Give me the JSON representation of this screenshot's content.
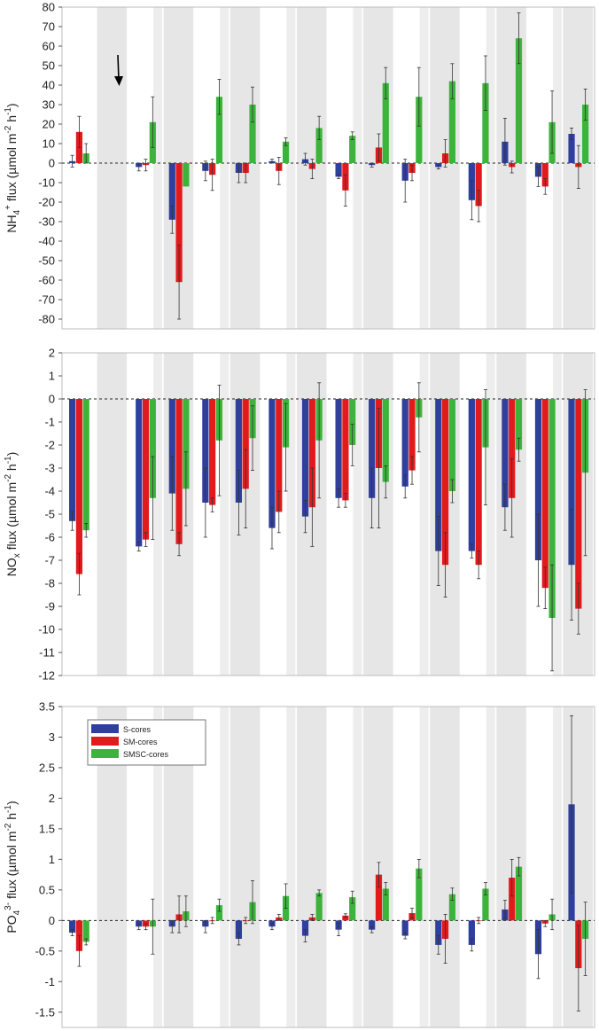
{
  "colors": {
    "S-cores": "#2e3f9e",
    "SM-cores": "#e31a1c",
    "SMSC-cores": "#3cb43c",
    "shade": "#e6e6e6",
    "frame": "#bdbdbd"
  },
  "legend": [
    "S-cores",
    "SM-cores",
    "SMSC-cores"
  ],
  "annotation": {
    "type": "arrow-down-icon"
  },
  "chart_data": [
    {
      "type": "bar",
      "ylabel": {
        "pre": "NH",
        "sub": "4",
        "sup": "+",
        "main": " flux (µmol m",
        "sup2": "-2",
        "mid": " h",
        "sup3": "-1",
        "post": ")"
      },
      "ylim": [
        -85,
        80
      ],
      "yticks": [
        80,
        70,
        60,
        50,
        40,
        30,
        20,
        10,
        0,
        -10,
        -20,
        -30,
        -40,
        -50,
        -60,
        -70,
        -80
      ],
      "groups": 8,
      "series": [
        {
          "name": "S-cores",
          "values": [
            [
              1,
              3
            ],
            [
              -2,
              2
            ],
            [
              -4,
              5
            ],
            [
              1,
              1
            ],
            [
              -7,
              1
            ],
            [
              -9,
              11
            ],
            [
              -19,
              10
            ],
            [
              -7,
              5
            ]
          ]
        },
        {
          "name": "SM-cores",
          "values": [
            [
              16,
              8
            ],
            [
              -1,
              3
            ],
            [
              -6,
              8
            ],
            [
              -4,
              7
            ],
            [
              -14,
              8
            ],
            [
              -5,
              4
            ],
            [
              -22,
              8
            ],
            [
              -12,
              4
            ]
          ]
        },
        {
          "name": "SMSC-cores",
          "values": [
            [
              5,
              5
            ],
            [
              21,
              13
            ],
            [
              34,
              9
            ],
            [
              11,
              2
            ],
            [
              14,
              2
            ],
            [
              34,
              15
            ],
            [
              41,
              14
            ],
            [
              21,
              16
            ]
          ]
        },
        {
          "name": "S-cores",
          "values": [
            null,
            [
              -29,
              7
            ],
            [
              -5,
              5
            ],
            [
              2,
              3
            ],
            [
              -1,
              1
            ],
            [
              -2,
              1
            ],
            [
              11,
              12
            ],
            [
              15,
              3
            ]
          ]
        },
        {
          "name": "SM-cores",
          "values": [
            null,
            [
              -61,
              19
            ],
            [
              -5,
              5
            ],
            [
              -3,
              5
            ],
            [
              8,
              7
            ],
            [
              5,
              7
            ],
            [
              -2,
              3
            ],
            [
              -2,
              11
            ]
          ]
        },
        {
          "name": "SMSC-cores",
          "values": [
            null,
            [
              -12,
              0
            ],
            [
              30,
              9
            ],
            [
              18,
              6
            ],
            [
              41,
              8
            ],
            [
              42,
              9
            ],
            [
              64,
              13
            ],
            [
              30,
              8
            ]
          ]
        }
      ]
    },
    {
      "type": "bar",
      "ylabel": {
        "pre": "NO",
        "sub": "x",
        "sup": "",
        "main": " flux (µmol m",
        "sup2": "-2",
        "mid": " h",
        "sup3": "-1",
        "post": ")"
      },
      "ylim": [
        -12,
        2
      ],
      "yticks": [
        2,
        1,
        0,
        -1,
        -2,
        -3,
        -4,
        -5,
        -6,
        -7,
        -8,
        -9,
        -10,
        -11,
        -12
      ],
      "groups": 8,
      "series": [
        {
          "name": "S-cores",
          "values": [
            [
              -5.3,
              0.4
            ],
            [
              -6.4,
              0.2
            ],
            [
              -4.5,
              1.5
            ],
            [
              -5.6,
              0.9
            ],
            [
              -4.3,
              0.4
            ],
            [
              -3.8,
              0.5
            ],
            [
              -6.6,
              0.3
            ],
            [
              -7.0,
              2.0
            ]
          ]
        },
        {
          "name": "SM-cores",
          "values": [
            [
              -7.6,
              0.9
            ],
            [
              -6.1,
              0.3
            ],
            [
              -4.6,
              0.3
            ],
            [
              -4.9,
              0.9
            ],
            [
              -4.4,
              0.3
            ],
            [
              -3.1,
              0.6
            ],
            [
              -7.2,
              0.6
            ],
            [
              -8.2,
              0.9
            ]
          ]
        },
        {
          "name": "SMSC-cores",
          "values": [
            [
              -5.7,
              0.3
            ],
            [
              -4.3,
              1.8
            ],
            [
              -1.8,
              2.4
            ],
            [
              -2.1,
              1.9
            ],
            [
              -2.0,
              0.9
            ],
            [
              -0.8,
              1.5
            ],
            [
              -2.1,
              2.5
            ],
            [
              -9.5,
              2.3
            ]
          ]
        },
        {
          "name": "S-cores",
          "values": [
            null,
            [
              -4.1,
              1.6
            ],
            [
              -4.5,
              1.4
            ],
            [
              -5.1,
              0.7
            ],
            [
              -4.3,
              1.3
            ],
            [
              -6.6,
              1.5
            ],
            [
              -4.7,
              1.0
            ],
            [
              -7.2,
              2.4
            ]
          ]
        },
        {
          "name": "SM-cores",
          "values": [
            null,
            [
              -6.3,
              0.5
            ],
            [
              -3.9,
              1.7
            ],
            [
              -4.7,
              1.7
            ],
            [
              -3.0,
              2.6
            ],
            [
              -7.2,
              1.4
            ],
            [
              -4.3,
              1.7
            ],
            [
              -9.1,
              1.1
            ]
          ]
        },
        {
          "name": "SMSC-cores",
          "values": [
            null,
            [
              -3.9,
              1.6
            ],
            [
              -1.7,
              1.4
            ],
            [
              -1.8,
              2.5
            ],
            [
              -3.6,
              0.7
            ],
            [
              -4.0,
              0.5
            ],
            [
              -2.2,
              0.5
            ],
            [
              -3.2,
              3.6
            ]
          ]
        }
      ]
    },
    {
      "type": "bar",
      "ylabel": {
        "pre": "PO",
        "sub": "4",
        "sup": "3-",
        "main": " flux (µmol m",
        "sup2": "-2",
        "mid": " h",
        "sup3": "-1",
        "post": ")"
      },
      "ylim": [
        -1.75,
        3.5
      ],
      "yticks": [
        3.5,
        3,
        2.5,
        2,
        1.5,
        1,
        0.5,
        0,
        -0.5,
        -1,
        -1.5
      ],
      "groups": 8,
      "series": [
        {
          "name": "S-cores",
          "values": [
            [
              -0.2,
              0.05
            ],
            [
              -0.1,
              0.05
            ],
            [
              -0.1,
              0.1
            ],
            [
              -0.1,
              0.05
            ],
            [
              -0.15,
              0.1
            ],
            [
              -0.25,
              0.05
            ],
            [
              -0.4,
              0.1
            ],
            [
              -0.55,
              0.4
            ]
          ]
        },
        {
          "name": "SM-cores",
          "values": [
            [
              -0.5,
              0.25
            ],
            [
              -0.1,
              0.05
            ],
            [
              0.0,
              0.05
            ],
            [
              0.05,
              0.05
            ],
            [
              0.08,
              0.03
            ],
            [
              0.12,
              0.08
            ],
            [
              0.0,
              0.05
            ],
            [
              -0.05,
              0.05
            ]
          ]
        },
        {
          "name": "SMSC-cores",
          "values": [
            [
              -0.35,
              0.05
            ],
            [
              -0.1,
              0.45
            ],
            [
              0.25,
              0.1
            ],
            [
              0.4,
              0.2
            ],
            [
              0.38,
              0.1
            ],
            [
              0.85,
              0.15
            ],
            [
              0.52,
              0.1
            ],
            [
              0.1,
              0.25
            ]
          ]
        },
        {
          "name": "S-cores",
          "values": [
            null,
            [
              -0.1,
              0.1
            ],
            [
              -0.3,
              0.1
            ],
            [
              -0.25,
              0.1
            ],
            [
              -0.15,
              0.05
            ],
            [
              -0.4,
              0.15
            ],
            [
              0.18,
              0.15
            ],
            [
              1.9,
              1.45
            ]
          ]
        },
        {
          "name": "SM-cores",
          "values": [
            null,
            [
              0.1,
              0.3
            ],
            [
              0.0,
              0.05
            ],
            [
              0.05,
              0.05
            ],
            [
              0.75,
              0.2
            ],
            [
              -0.3,
              0.4
            ],
            [
              0.7,
              0.3
            ],
            [
              -0.78,
              0.7
            ]
          ]
        },
        {
          "name": "SMSC-cores",
          "values": [
            null,
            [
              0.15,
              0.25
            ],
            [
              0.3,
              0.35
            ],
            [
              0.45,
              0.05
            ],
            [
              0.52,
              0.1
            ],
            [
              0.43,
              0.1
            ],
            [
              0.88,
              0.15
            ],
            [
              -0.3,
              0.6
            ]
          ]
        }
      ]
    }
  ]
}
